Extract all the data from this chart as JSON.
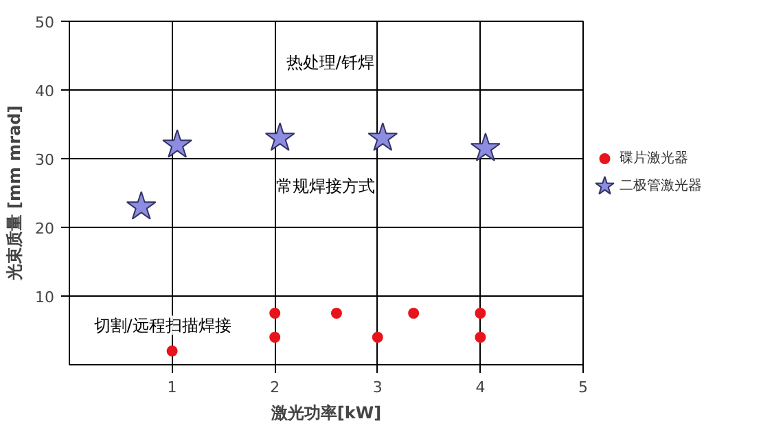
{
  "chart_data": {
    "type": "scatter",
    "xlabel": "激光功率[kW]",
    "ylabel": "光束质量 [mm mrad]",
    "xlim": [
      0,
      5
    ],
    "ylim": [
      0,
      50
    ],
    "xticks": [
      1,
      2,
      3,
      4,
      5
    ],
    "yticks": [
      10,
      20,
      30,
      40,
      50
    ],
    "grid": true,
    "legend": "right",
    "series": [
      {
        "name": "碟片激光器",
        "color": "#e8141c",
        "marker": "circle",
        "x": [
          1,
          2,
          2,
          2.6,
          3,
          3.35,
          4,
          4
        ],
        "values": [
          2,
          7.5,
          4,
          7.5,
          4,
          7.5,
          7.5,
          4
        ]
      },
      {
        "name": "二极管激光器",
        "color": "#8c8ce0",
        "marker": "star",
        "x": [
          0.7,
          1.05,
          2.05,
          3.05,
          4.05
        ],
        "values": [
          23,
          32,
          33,
          33,
          31.5
        ]
      }
    ],
    "annotations": [
      "热处理/钎焊",
      "常规焊接方式",
      "切割/远程扫描焊接"
    ]
  }
}
